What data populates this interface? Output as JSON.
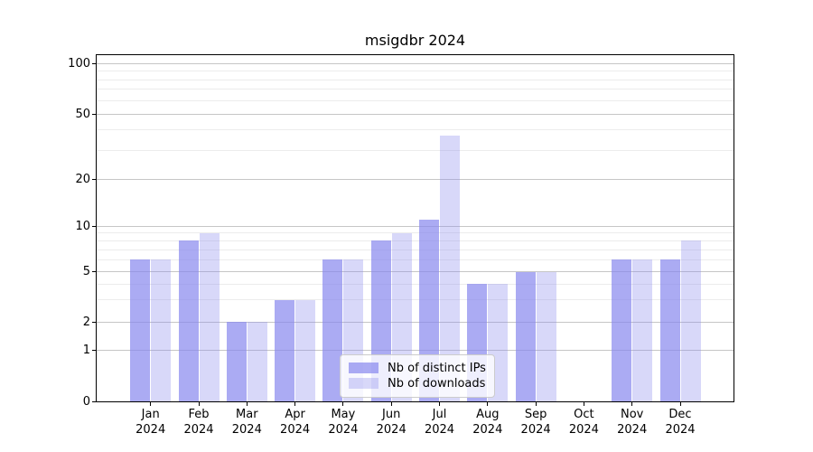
{
  "chart_data": {
    "type": "bar",
    "title": "msigdbr 2024",
    "categories": [
      "Jan",
      "Feb",
      "Mar",
      "Apr",
      "May",
      "Jun",
      "Jul",
      "Aug",
      "Sep",
      "Oct",
      "Nov",
      "Dec"
    ],
    "year_label": "2024",
    "series": [
      {
        "name": "Nb of distinct IPs",
        "color": "rgba(136,136,238,0.7)",
        "values": [
          6,
          8,
          2,
          3,
          6,
          8,
          11,
          4,
          5,
          0,
          6,
          6
        ]
      },
      {
        "name": "Nb of downloads",
        "color": "rgba(136,136,238,0.33)",
        "values": [
          6,
          9,
          2,
          3,
          6,
          9,
          37,
          4,
          5,
          0,
          6,
          8
        ]
      }
    ],
    "xlabel": "",
    "ylabel": "",
    "ylim": [
      0,
      100
    ],
    "y_ticks_major": [
      0,
      1,
      2,
      5,
      10,
      20,
      50,
      100
    ],
    "y_ticks_minor": [
      3,
      4,
      6,
      7,
      8,
      9,
      30,
      40,
      60,
      70,
      80,
      90
    ],
    "grid": "horizontal",
    "legend_position": "inside-bottom-center",
    "axis_scale": "log-like with linear 0-1 segment"
  }
}
